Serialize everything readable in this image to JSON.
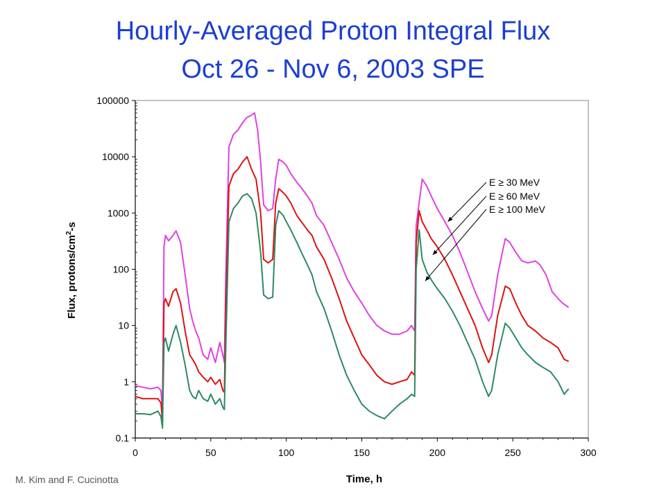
{
  "title_line1": "Hourly-Averaged Proton Integral Flux",
  "title_line2": "Oct 26 - Nov 6, 2003 SPE",
  "credit": "M. Kim and F. Cucinotta",
  "colors": {
    "title": "#1b3fd0",
    "e30": "#e040e0",
    "e60": "#e01010",
    "e100": "#2a8a60"
  },
  "chart_data": {
    "type": "line",
    "xlabel": "Time, h",
    "ylabel_main": "Flux, protons/cm",
    "ylabel_sup": "2",
    "ylabel_end": "-s",
    "xlim": [
      0,
      300
    ],
    "ylim": [
      0.1,
      100000
    ],
    "yscale": "log",
    "grid": false,
    "legend_placement": "right, with arrows",
    "x_ticks": [
      "0",
      "50",
      "100",
      "150",
      "200",
      "250",
      "300"
    ],
    "y_ticks": [
      "0.1",
      "1",
      "10",
      "100",
      "1000",
      "10000",
      "100000"
    ],
    "series": [
      {
        "name": "E ≥ 30 MeV",
        "color": "#e040e0",
        "points": [
          [
            0,
            0.85
          ],
          [
            5,
            0.8
          ],
          [
            10,
            0.75
          ],
          [
            15,
            0.8
          ],
          [
            17,
            0.7
          ],
          [
            18,
            0.3
          ],
          [
            19,
            250
          ],
          [
            20,
            400
          ],
          [
            22,
            320
          ],
          [
            25,
            400
          ],
          [
            27,
            480
          ],
          [
            30,
            300
          ],
          [
            33,
            80
          ],
          [
            36,
            20
          ],
          [
            38,
            12
          ],
          [
            40,
            8
          ],
          [
            42,
            6
          ],
          [
            45,
            3
          ],
          [
            48,
            2.5
          ],
          [
            50,
            4
          ],
          [
            53,
            2.2
          ],
          [
            56,
            5
          ],
          [
            58,
            3
          ],
          [
            59,
            2.2
          ],
          [
            60,
            90
          ],
          [
            62,
            15000
          ],
          [
            65,
            25000
          ],
          [
            68,
            30000
          ],
          [
            71,
            40000
          ],
          [
            74,
            50000
          ],
          [
            77,
            55000
          ],
          [
            79,
            60000
          ],
          [
            81,
            30000
          ],
          [
            83,
            8000
          ],
          [
            85,
            1400
          ],
          [
            88,
            1100
          ],
          [
            91,
            1200
          ],
          [
            93,
            4000
          ],
          [
            95,
            9000
          ],
          [
            98,
            8000
          ],
          [
            100,
            7000
          ],
          [
            103,
            5000
          ],
          [
            107,
            3500
          ],
          [
            110,
            2800
          ],
          [
            114,
            2000
          ],
          [
            117,
            1500
          ],
          [
            120,
            900
          ],
          [
            125,
            600
          ],
          [
            130,
            300
          ],
          [
            135,
            150
          ],
          [
            140,
            70
          ],
          [
            145,
            40
          ],
          [
            150,
            25
          ],
          [
            155,
            15
          ],
          [
            160,
            10
          ],
          [
            165,
            8
          ],
          [
            170,
            7
          ],
          [
            175,
            7
          ],
          [
            180,
            8
          ],
          [
            183,
            10
          ],
          [
            185,
            8
          ],
          [
            186,
            600
          ],
          [
            190,
            4000
          ],
          [
            193,
            3000
          ],
          [
            196,
            2000
          ],
          [
            200,
            1200
          ],
          [
            205,
            700
          ],
          [
            210,
            400
          ],
          [
            215,
            200
          ],
          [
            220,
            90
          ],
          [
            225,
            40
          ],
          [
            230,
            20
          ],
          [
            234,
            12
          ],
          [
            236,
            15
          ],
          [
            240,
            80
          ],
          [
            245,
            350
          ],
          [
            248,
            300
          ],
          [
            252,
            200
          ],
          [
            256,
            140
          ],
          [
            260,
            130
          ],
          [
            265,
            140
          ],
          [
            268,
            120
          ],
          [
            272,
            80
          ],
          [
            276,
            40
          ],
          [
            280,
            30
          ],
          [
            283,
            25
          ],
          [
            287,
            21
          ]
        ]
      },
      {
        "name": "E ≥ 60 MeV",
        "color": "#e01010",
        "points": [
          [
            0,
            0.55
          ],
          [
            5,
            0.5
          ],
          [
            10,
            0.5
          ],
          [
            15,
            0.5
          ],
          [
            17,
            0.42
          ],
          [
            18,
            0.2
          ],
          [
            19,
            25
          ],
          [
            20,
            30
          ],
          [
            22,
            22
          ],
          [
            25,
            40
          ],
          [
            27,
            45
          ],
          [
            30,
            25
          ],
          [
            33,
            8
          ],
          [
            36,
            3
          ],
          [
            38,
            2.5
          ],
          [
            40,
            2
          ],
          [
            42,
            1.5
          ],
          [
            45,
            1.2
          ],
          [
            48,
            1.0
          ],
          [
            50,
            1.2
          ],
          [
            53,
            0.9
          ],
          [
            56,
            1.1
          ],
          [
            58,
            0.7
          ],
          [
            59,
            0.65
          ],
          [
            60,
            25
          ],
          [
            62,
            3000
          ],
          [
            65,
            5000
          ],
          [
            68,
            6000
          ],
          [
            71,
            8000
          ],
          [
            74,
            10000
          ],
          [
            77,
            6000
          ],
          [
            80,
            4000
          ],
          [
            83,
            1000
          ],
          [
            85,
            150
          ],
          [
            88,
            130
          ],
          [
            91,
            150
          ],
          [
            93,
            1500
          ],
          [
            95,
            2700
          ],
          [
            98,
            2300
          ],
          [
            100,
            2000
          ],
          [
            103,
            1500
          ],
          [
            107,
            900
          ],
          [
            110,
            700
          ],
          [
            114,
            500
          ],
          [
            117,
            400
          ],
          [
            120,
            250
          ],
          [
            125,
            150
          ],
          [
            130,
            70
          ],
          [
            135,
            30
          ],
          [
            140,
            12
          ],
          [
            145,
            6
          ],
          [
            150,
            3
          ],
          [
            155,
            2
          ],
          [
            160,
            1.3
          ],
          [
            165,
            1.0
          ],
          [
            170,
            0.9
          ],
          [
            175,
            1.0
          ],
          [
            180,
            1.1
          ],
          [
            183,
            1.5
          ],
          [
            185,
            1.3
          ],
          [
            186,
            300
          ],
          [
            188,
            1100
          ],
          [
            190,
            700
          ],
          [
            193,
            500
          ],
          [
            196,
            350
          ],
          [
            200,
            250
          ],
          [
            205,
            150
          ],
          [
            210,
            80
          ],
          [
            215,
            40
          ],
          [
            220,
            20
          ],
          [
            225,
            10
          ],
          [
            230,
            4
          ],
          [
            234,
            2.2
          ],
          [
            236,
            3
          ],
          [
            240,
            15
          ],
          [
            245,
            50
          ],
          [
            248,
            45
          ],
          [
            252,
            25
          ],
          [
            256,
            15
          ],
          [
            260,
            10
          ],
          [
            265,
            8
          ],
          [
            270,
            6
          ],
          [
            275,
            5
          ],
          [
            280,
            4
          ],
          [
            284,
            2.5
          ],
          [
            287,
            2.3
          ]
        ]
      },
      {
        "name": "E ≥ 100 MeV",
        "color": "#2a8a60",
        "points": [
          [
            0,
            0.27
          ],
          [
            5,
            0.27
          ],
          [
            10,
            0.26
          ],
          [
            15,
            0.3
          ],
          [
            17,
            0.24
          ],
          [
            18,
            0.15
          ],
          [
            19,
            5
          ],
          [
            20,
            6
          ],
          [
            22,
            3.5
          ],
          [
            25,
            7
          ],
          [
            27,
            10
          ],
          [
            30,
            5
          ],
          [
            33,
            2
          ],
          [
            36,
            0.7
          ],
          [
            38,
            0.55
          ],
          [
            40,
            0.5
          ],
          [
            42,
            0.7
          ],
          [
            45,
            0.5
          ],
          [
            48,
            0.45
          ],
          [
            50,
            0.6
          ],
          [
            53,
            0.4
          ],
          [
            56,
            0.5
          ],
          [
            58,
            0.35
          ],
          [
            59,
            0.32
          ],
          [
            60,
            5
          ],
          [
            62,
            700
          ],
          [
            65,
            1200
          ],
          [
            68,
            1500
          ],
          [
            71,
            2000
          ],
          [
            74,
            2200
          ],
          [
            77,
            1800
          ],
          [
            80,
            1000
          ],
          [
            83,
            200
          ],
          [
            85,
            35
          ],
          [
            88,
            30
          ],
          [
            91,
            32
          ],
          [
            93,
            600
          ],
          [
            95,
            1100
          ],
          [
            98,
            900
          ],
          [
            100,
            700
          ],
          [
            103,
            500
          ],
          [
            107,
            300
          ],
          [
            110,
            200
          ],
          [
            114,
            120
          ],
          [
            117,
            80
          ],
          [
            120,
            40
          ],
          [
            125,
            20
          ],
          [
            130,
            8
          ],
          [
            135,
            3
          ],
          [
            140,
            1.3
          ],
          [
            145,
            0.7
          ],
          [
            150,
            0.4
          ],
          [
            155,
            0.3
          ],
          [
            160,
            0.25
          ],
          [
            165,
            0.22
          ],
          [
            170,
            0.3
          ],
          [
            175,
            0.4
          ],
          [
            180,
            0.5
          ],
          [
            183,
            0.6
          ],
          [
            185,
            0.55
          ],
          [
            186,
            100
          ],
          [
            188,
            500
          ],
          [
            190,
            150
          ],
          [
            193,
            90
          ],
          [
            196,
            65
          ],
          [
            200,
            45
          ],
          [
            205,
            30
          ],
          [
            210,
            18
          ],
          [
            215,
            10
          ],
          [
            220,
            5
          ],
          [
            225,
            2.5
          ],
          [
            230,
            1.0
          ],
          [
            234,
            0.55
          ],
          [
            236,
            0.7
          ],
          [
            240,
            3
          ],
          [
            245,
            11
          ],
          [
            248,
            9
          ],
          [
            252,
            6
          ],
          [
            256,
            4
          ],
          [
            260,
            3
          ],
          [
            265,
            2.2
          ],
          [
            270,
            1.8
          ],
          [
            275,
            1.5
          ],
          [
            280,
            1.0
          ],
          [
            284,
            0.6
          ],
          [
            287,
            0.75
          ]
        ]
      }
    ]
  }
}
